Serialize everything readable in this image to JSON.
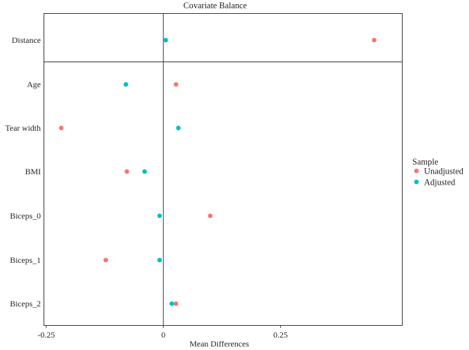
{
  "chart_data": {
    "type": "scatter",
    "title": "Covariate Balance",
    "xlabel": "Mean Differences",
    "ylabel": "",
    "xlim": [
      -0.255,
      0.51
    ],
    "xticks": [
      -0.25,
      0,
      0.25
    ],
    "xtick_labels": [
      "-0.25",
      "0",
      "0.25"
    ],
    "categories": [
      "Distance",
      "Age",
      "Tear width",
      "BMI",
      "Biceps_0",
      "Biceps_1",
      "Biceps_2"
    ],
    "legend": {
      "title": "Sample",
      "position": "right"
    },
    "series": [
      {
        "name": "Unadjusted",
        "color": "#F8766D",
        "values": [
          0.45,
          0.027,
          -0.218,
          -0.078,
          0.1,
          -0.123,
          0.027
        ]
      },
      {
        "name": "Adjusted",
        "color": "#00BFC4",
        "values": [
          0.005,
          -0.08,
          0.032,
          -0.04,
          -0.008,
          -0.008,
          0.018
        ]
      }
    ],
    "grid": false,
    "separator_after": "Distance"
  }
}
